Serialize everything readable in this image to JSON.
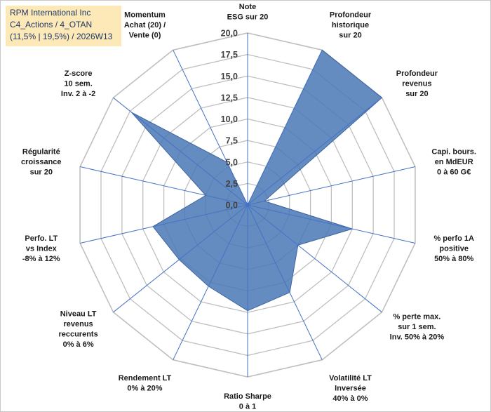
{
  "header": {
    "line1": "RPM International Inc",
    "line2": "C4_Actions / 4_OTAN",
    "line3": "(11,5% | 19,5%) / 2026W13"
  },
  "chart_data": {
    "type": "radar",
    "rmax": 20,
    "ticks": [
      "0,0",
      "2,5",
      "5,0",
      "7,5",
      "10,0",
      "12,5",
      "15,0",
      "17,5",
      "20,0"
    ],
    "grid": true,
    "fill_color": "#4a78b5",
    "grid_color": "#bfbfbf",
    "spoke_color": "#4472c4",
    "axes": [
      {
        "lines": [
          "Note",
          "ESG sur 20"
        ],
        "value": 0
      },
      {
        "lines": [
          "Profondeur",
          "historique",
          "sur 20"
        ],
        "value": 20
      },
      {
        "lines": [
          "Profondeur",
          "revenus",
          "sur 20"
        ],
        "value": 20
      },
      {
        "lines": [
          "Capi. bours.",
          "en MdEUR",
          "0 à 60 G€"
        ],
        "value": 2
      },
      {
        "lines": [
          "% perfo 1A",
          "positive",
          "50% à 80%"
        ],
        "value": 12.5
      },
      {
        "lines": [
          "% perte max.",
          "sur 1 sem.",
          "Inv. 50% à 20%"
        ],
        "value": 7.5
      },
      {
        "lines": [
          "Volatilité LT",
          "Inversée",
          "40% à 0%"
        ],
        "value": 11.3
      },
      {
        "lines": [
          "Ratio Sharpe",
          "0 à 1"
        ],
        "value": 12.3
      },
      {
        "lines": [
          "Rendement LT",
          "0% à 20%"
        ],
        "value": 10.5
      },
      {
        "lines": [
          "Niveau LT",
          "revenus",
          "reccurents",
          "0% à 6%"
        ],
        "value": 10.2
      },
      {
        "lines": [
          "Perfo. LT",
          "vs Index",
          "-8% à 12%"
        ],
        "value": 11.3
      },
      {
        "lines": [
          "Régularité",
          "croissance",
          "sur 20"
        ],
        "value": 5
      },
      {
        "lines": [
          "Z-score",
          "10 sem.",
          "Inv. 2 à -2"
        ],
        "value": 17.3
      },
      {
        "lines": [
          "Momentum",
          "Achat (20) /",
          "Vente (0)"
        ],
        "value": 5.5
      }
    ]
  }
}
